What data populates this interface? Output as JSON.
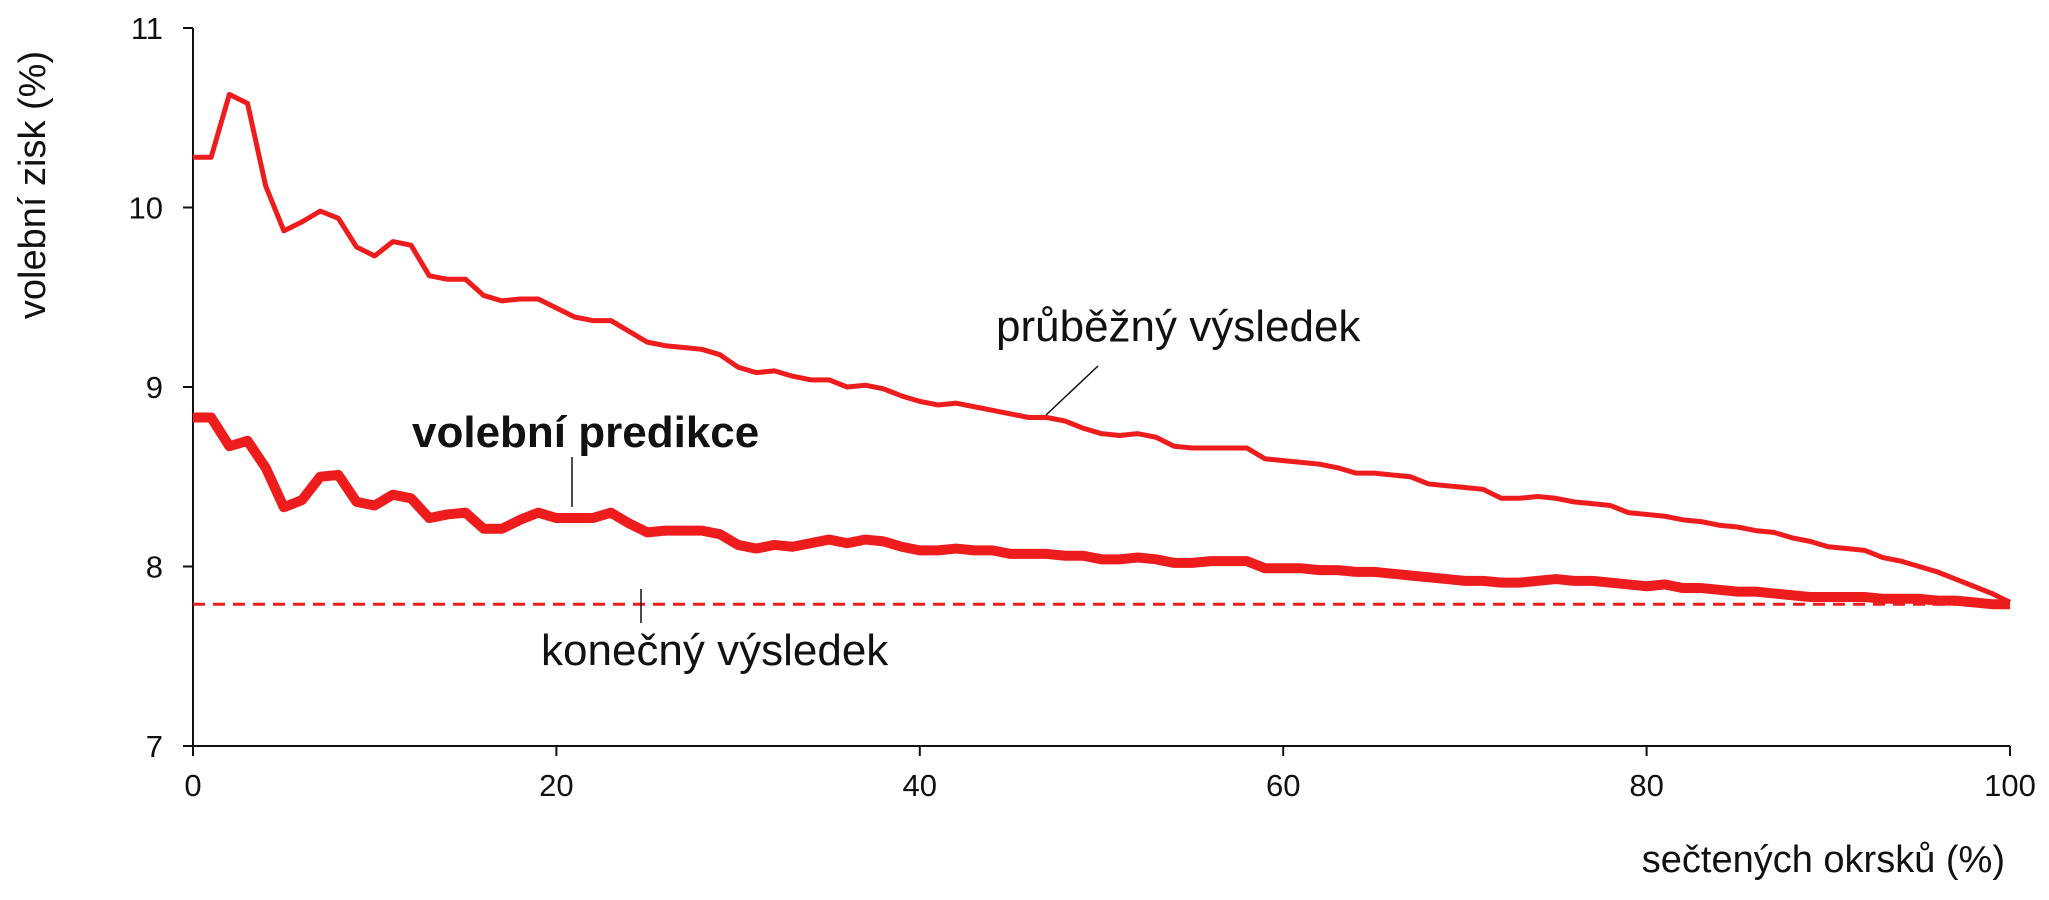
{
  "chart_data": {
    "type": "line",
    "xlabel": "sečtených okrsků (%)",
    "ylabel": "volební zisk (%)",
    "x": [
      0,
      1,
      2,
      3,
      4,
      5,
      6,
      7,
      8,
      9,
      10,
      11,
      12,
      13,
      14,
      15,
      16,
      17,
      18,
      19,
      20,
      21,
      22,
      23,
      24,
      25,
      26,
      27,
      28,
      29,
      30,
      31,
      32,
      33,
      34,
      35,
      36,
      37,
      38,
      39,
      40,
      41,
      42,
      43,
      44,
      45,
      46,
      47,
      48,
      49,
      50,
      51,
      52,
      53,
      54,
      55,
      56,
      57,
      58,
      59,
      60,
      61,
      62,
      63,
      64,
      65,
      66,
      67,
      68,
      69,
      70,
      71,
      72,
      73,
      74,
      75,
      76,
      77,
      78,
      79,
      80,
      81,
      82,
      83,
      84,
      85,
      86,
      87,
      88,
      89,
      90,
      91,
      92,
      93,
      94,
      95,
      96,
      97,
      98,
      99,
      100
    ],
    "series": [
      {
        "name": "průběžný výsledek",
        "color": "#ee1c1c",
        "values": [
          10.28,
          10.28,
          10.63,
          10.58,
          10.12,
          9.87,
          9.92,
          9.98,
          9.94,
          9.78,
          9.73,
          9.81,
          9.79,
          9.62,
          9.6,
          9.6,
          9.51,
          9.48,
          9.49,
          9.49,
          9.44,
          9.39,
          9.37,
          9.37,
          9.31,
          9.25,
          9.23,
          9.22,
          9.21,
          9.18,
          9.11,
          9.08,
          9.09,
          9.06,
          9.04,
          9.04,
          9.0,
          9.01,
          8.99,
          8.95,
          8.92,
          8.9,
          8.91,
          8.89,
          8.87,
          8.85,
          8.83,
          8.83,
          8.81,
          8.77,
          8.74,
          8.73,
          8.74,
          8.72,
          8.67,
          8.66,
          8.66,
          8.66,
          8.66,
          8.6,
          8.59,
          8.58,
          8.57,
          8.55,
          8.52,
          8.52,
          8.51,
          8.5,
          8.46,
          8.45,
          8.44,
          8.43,
          8.38,
          8.38,
          8.39,
          8.38,
          8.36,
          8.35,
          8.34,
          8.3,
          8.29,
          8.28,
          8.26,
          8.25,
          8.23,
          8.22,
          8.2,
          8.19,
          8.16,
          8.14,
          8.11,
          8.1,
          8.09,
          8.05,
          8.03,
          8.0,
          7.97,
          7.93,
          7.89,
          7.85,
          7.8
        ]
      },
      {
        "name": "volební predikce",
        "color": "#ee1c1c",
        "values": [
          8.83,
          8.83,
          8.67,
          8.7,
          8.55,
          8.33,
          8.37,
          8.5,
          8.51,
          8.36,
          8.34,
          8.4,
          8.38,
          8.27,
          8.29,
          8.3,
          8.21,
          8.21,
          8.26,
          8.3,
          8.27,
          8.27,
          8.27,
          8.3,
          8.24,
          8.19,
          8.2,
          8.2,
          8.2,
          8.18,
          8.12,
          8.1,
          8.12,
          8.11,
          8.13,
          8.15,
          8.13,
          8.15,
          8.14,
          8.11,
          8.09,
          8.09,
          8.1,
          8.09,
          8.09,
          8.07,
          8.07,
          8.07,
          8.06,
          8.06,
          8.04,
          8.04,
          8.05,
          8.04,
          8.02,
          8.02,
          8.03,
          8.03,
          8.03,
          7.99,
          7.99,
          7.99,
          7.98,
          7.98,
          7.97,
          7.97,
          7.96,
          7.95,
          7.94,
          7.93,
          7.92,
          7.92,
          7.91,
          7.91,
          7.92,
          7.93,
          7.92,
          7.92,
          7.91,
          7.9,
          7.89,
          7.9,
          7.88,
          7.88,
          7.87,
          7.86,
          7.86,
          7.85,
          7.84,
          7.83,
          7.83,
          7.83,
          7.83,
          7.82,
          7.82,
          7.82,
          7.81,
          7.81,
          7.8,
          7.79,
          7.79
        ]
      }
    ],
    "reference": {
      "name": "konečný výsledek",
      "value": 7.79,
      "color": "#ee1c1c"
    },
    "xlim": [
      0,
      100
    ],
    "xticks": [
      0,
      20,
      40,
      60,
      80,
      100
    ],
    "ylim": [
      7,
      11
    ],
    "yticks": [
      7,
      8,
      9,
      10,
      11
    ]
  }
}
